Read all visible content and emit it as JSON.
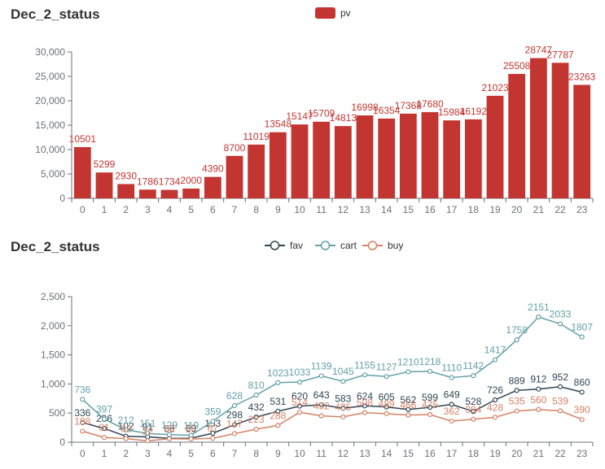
{
  "chart_data": [
    {
      "type": "bar",
      "title": "Dec_2_status",
      "legend": {
        "position": "top-center"
      },
      "categories": [
        "0",
        "1",
        "2",
        "3",
        "4",
        "5",
        "6",
        "7",
        "8",
        "9",
        "10",
        "11",
        "12",
        "13",
        "14",
        "15",
        "16",
        "17",
        "18",
        "19",
        "20",
        "21",
        "22",
        "23"
      ],
      "series": [
        {
          "name": "pv",
          "color": "#c23531",
          "values": [
            10501,
            5299,
            2930,
            1786,
            1734,
            2000,
            4390,
            8700,
            11019,
            13548,
            15147,
            15709,
            14813,
            16998,
            16354,
            17368,
            17680,
            15984,
            16192,
            21023,
            25508,
            28747,
            27787,
            23263
          ]
        }
      ],
      "ylim": [
        0,
        30000
      ],
      "yticks": [
        "0",
        "5,000",
        "10,000",
        "15,000",
        "20,000",
        "25,000",
        "30,000"
      ],
      "grid": false,
      "data_labels": true
    },
    {
      "type": "line",
      "title": "Dec_2_status",
      "legend": {
        "position": "top-center"
      },
      "categories": [
        "0",
        "1",
        "2",
        "3",
        "4",
        "5",
        "6",
        "7",
        "8",
        "9",
        "10",
        "11",
        "12",
        "13",
        "14",
        "15",
        "16",
        "17",
        "18",
        "19",
        "20",
        "21",
        "22",
        "23"
      ],
      "series": [
        {
          "name": "fav",
          "color": "#2f4554",
          "values": [
            336,
            236,
            102,
            91,
            66,
            69,
            153,
            298,
            432,
            531,
            620,
            643,
            583,
            624,
            605,
            562,
            599,
            649,
            528,
            726,
            889,
            912,
            952,
            860
          ]
        },
        {
          "name": "cart",
          "color": "#61a0a8",
          "values": [
            736,
            397,
            212,
            151,
            129,
            119,
            359,
            628,
            810,
            1023,
            1033,
            1139,
            1045,
            1155,
            1127,
            1210,
            1218,
            1110,
            1142,
            1417,
            1758,
            2151,
            2033,
            1807
          ]
        },
        {
          "name": "buy",
          "color": "#d48265",
          "values": [
            188,
            81,
            62,
            22,
            58,
            55,
            67,
            147,
            223,
            288,
            514,
            452,
            435,
            508,
            489,
            466,
            475,
            362,
            394,
            428,
            535,
            560,
            539,
            390
          ]
        }
      ],
      "ylim": [
        0,
        2500
      ],
      "yticks": [
        "0",
        "500",
        "1,000",
        "1,500",
        "2,000",
        "2,500"
      ],
      "grid": false,
      "data_labels": true
    }
  ]
}
